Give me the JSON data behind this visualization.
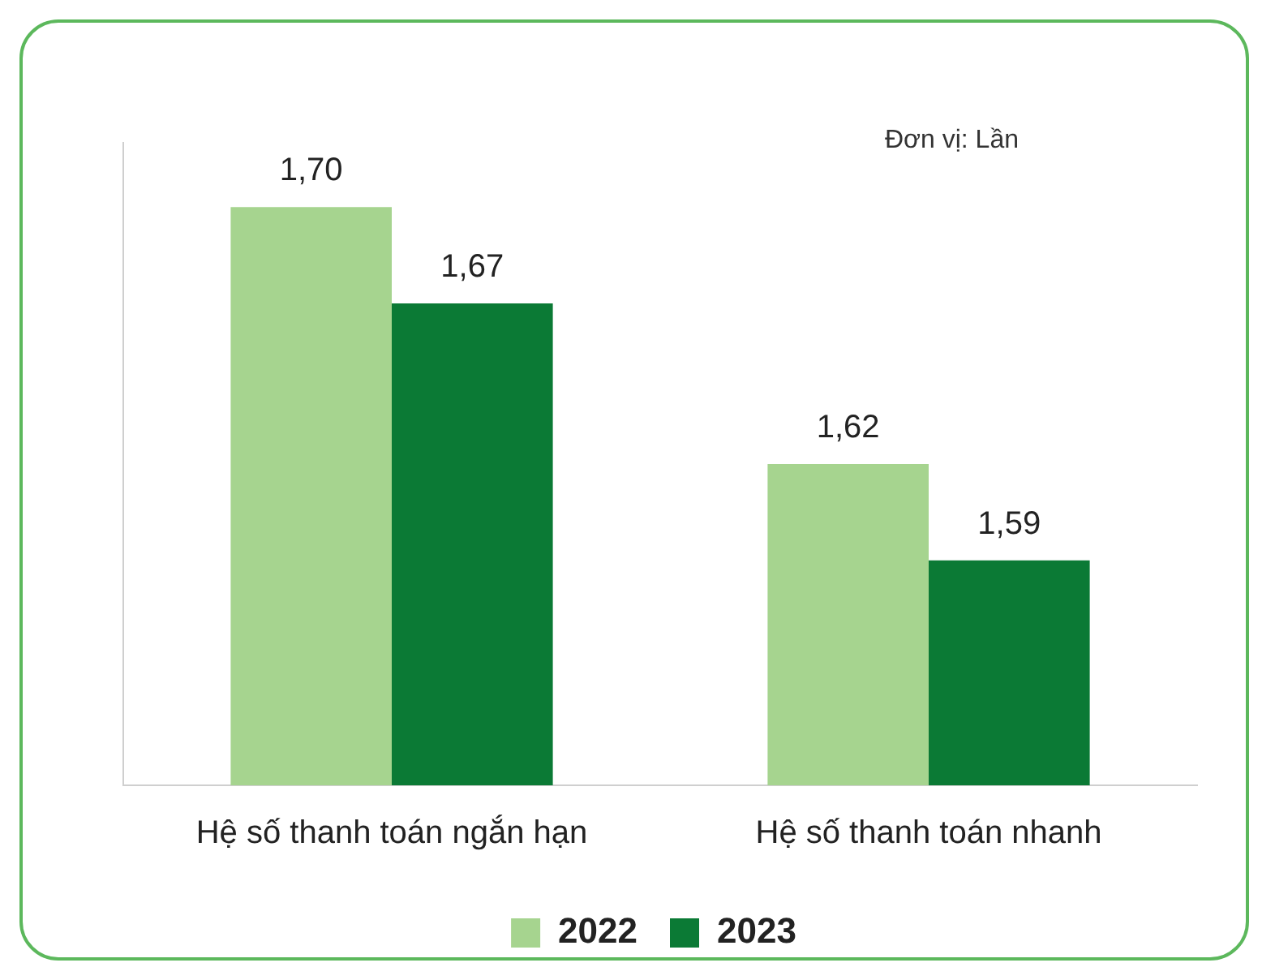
{
  "chart_data": {
    "type": "bar",
    "categories": [
      "Hệ số thanh toán ngắn hạn",
      "Hệ số thanh toán nhanh"
    ],
    "series": [
      {
        "name": "2022",
        "color": "#a6d48f",
        "values": [
          1.7,
          1.62
        ],
        "value_labels": [
          "1,70",
          "1,62"
        ]
      },
      {
        "name": "2023",
        "color": "#0b7a35",
        "values": [
          1.67,
          1.59
        ],
        "value_labels": [
          "1,67",
          "1,59"
        ]
      }
    ],
    "ylim": [
      1.52,
      1.72
    ],
    "tick_labels": "x",
    "grid": false,
    "legend": "bottom",
    "annotations": [
      "Đơn vị: Lần"
    ]
  }
}
